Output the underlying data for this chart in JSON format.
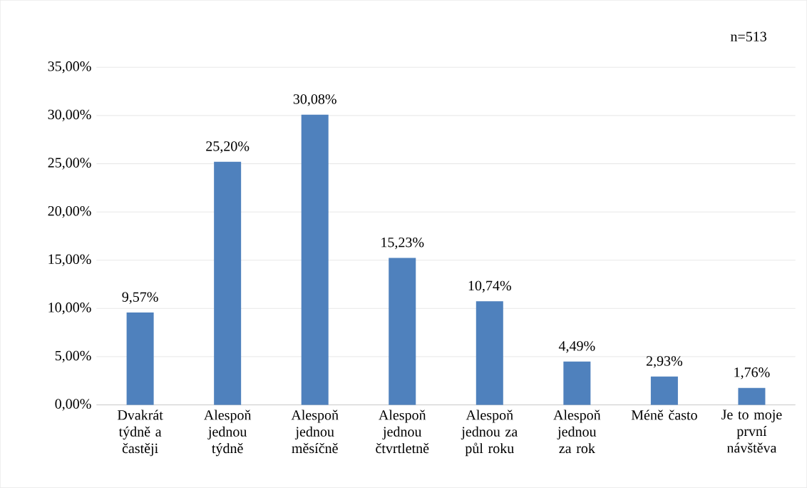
{
  "chart_data": {
    "type": "bar",
    "categories": [
      "Dvakrát týdně a častěji",
      "Alespoň jednou týdně",
      "Alespoň jednou měsíčně",
      "Alespoň jednou čtvrtletně",
      "Alespoň jednou za půl roku",
      "Alespoň jednou za rok",
      "Méně často",
      "Je to moje první návštěva"
    ],
    "values": [
      9.57,
      25.2,
      30.08,
      15.23,
      10.74,
      4.49,
      2.93,
      1.76
    ],
    "value_labels": [
      "9,57%",
      "25,20%",
      "30,08%",
      "15,23%",
      "10,74%",
      "4,49%",
      "2,93%",
      "1,76%"
    ],
    "color": "#4f81bd",
    "ylim": [
      0,
      35
    ],
    "yticks": [
      {
        "value": 0,
        "label": "0,00%"
      },
      {
        "value": 5,
        "label": "5,00%"
      },
      {
        "value": 10,
        "label": "10,00%"
      },
      {
        "value": 15,
        "label": "15,00%"
      },
      {
        "value": 20,
        "label": "20,00%"
      },
      {
        "value": 25,
        "label": "25,00%"
      },
      {
        "value": 30,
        "label": "30,00%"
      },
      {
        "value": 35,
        "label": "35,00%"
      }
    ],
    "grid": "y",
    "annotations": [
      "n=513"
    ]
  }
}
